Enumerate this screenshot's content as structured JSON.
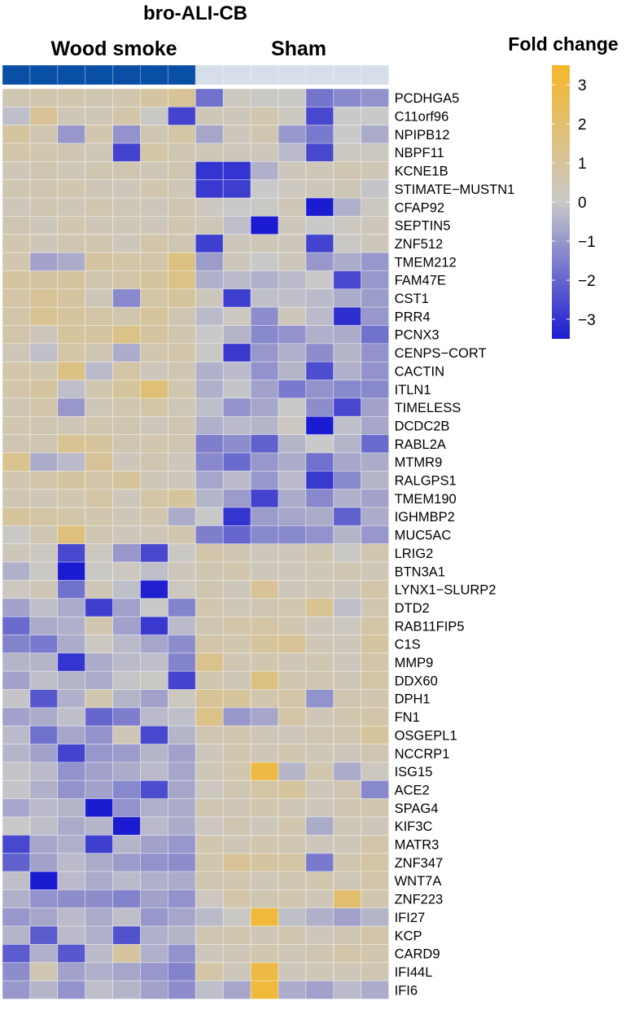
{
  "chart_data": {
    "type": "heatmap",
    "title": "bro-ALI-CB",
    "groups": [
      {
        "name": "Wood smoke",
        "n": 7,
        "color": "#0a4fa6"
      },
      {
        "name": "Sham",
        "n": 7,
        "color": "#d6dfe9"
      }
    ],
    "legend": {
      "title": "Fold change",
      "min": -3.5,
      "max": 3.5,
      "ticks": [
        3,
        2,
        1,
        0,
        -1,
        -2,
        -3
      ],
      "tick_labels": [
        "3",
        "2",
        "1",
        "0",
        "−1",
        "−2",
        "−3"
      ],
      "colors": {
        "low": "#1b1bd1",
        "mid": "#c9c9c9",
        "high": "#f5b72a"
      }
    },
    "rows": [
      "PCDHGA5",
      "C11orf96",
      "NPIPB12",
      "NBPF11",
      "KCNE1B",
      "STIMATE−MUSTN1",
      "CFAP92",
      "SEPTIN5",
      "ZNF512",
      "TMEM212",
      "FAM47E",
      "CST1",
      "PRR4",
      "PCNX3",
      "CENPS−CORT",
      "CACTIN",
      "ITLN1",
      "TIMELESS",
      "DCDC2B",
      "RABL2A",
      "MTMR9",
      "RALGPS1",
      "TMEM190",
      "IGHMBP2",
      "MUC5AC",
      "LRIG2",
      "BTN3A1",
      "LYNX1−SLURP2",
      "DTD2",
      "RAB11FIP5",
      "C1S",
      "MMP9",
      "DDX60",
      "DPH1",
      "FN1",
      "OSGEPL1",
      "NCCRP1",
      "ISG15",
      "ACE2",
      "SPAG4",
      "KIF3C",
      "MATR3",
      "ZNF347",
      "WNT7A",
      "ZNF223",
      "IFI27",
      "KCP",
      "CARD9",
      "IFI44L",
      "IFI6"
    ],
    "values": [
      [
        0.5,
        0.6,
        0.6,
        0.5,
        0.6,
        0.9,
        1.1,
        -1.8,
        0.2,
        0.1,
        0.1,
        -1.7,
        -1.3,
        -1.1
      ],
      [
        -0.2,
        1.1,
        0.4,
        0.4,
        0.7,
        0.1,
        -2.7,
        0.4,
        0.3,
        0.6,
        0.2,
        -2.6,
        0,
        0
      ],
      [
        0.9,
        0.5,
        -1.0,
        0.6,
        -1.1,
        0.5,
        0.8,
        -0.7,
        0.3,
        0.5,
        -1.0,
        -1.6,
        0,
        -0.6
      ],
      [
        0.7,
        0.6,
        0.5,
        0.4,
        -2.7,
        0.8,
        0.5,
        0.4,
        0.3,
        0.3,
        -0.3,
        -2.6,
        0.2,
        0.2
      ],
      [
        0.4,
        0.5,
        0.4,
        0.5,
        0.5,
        0.4,
        0.5,
        -3.0,
        -3.0,
        -0.5,
        0.3,
        0.4,
        0.5,
        0.4
      ],
      [
        0.5,
        0.5,
        0.6,
        0.4,
        0.3,
        0.6,
        0.4,
        -2.9,
        -2.8,
        0,
        0.2,
        0.3,
        0.4,
        -0.1
      ],
      [
        0.3,
        0.5,
        0.4,
        0.6,
        0.4,
        0.3,
        0.5,
        0.2,
        0,
        0.1,
        0.4,
        -3.5,
        -0.5,
        0.2
      ],
      [
        0.5,
        0.3,
        0.6,
        0.4,
        0.4,
        0.3,
        0.6,
        0.4,
        -0.2,
        -3.5,
        0.3,
        0,
        0.2,
        0.3
      ],
      [
        0.6,
        0.4,
        0.5,
        0.6,
        0.3,
        0.7,
        0.5,
        -2.8,
        0.3,
        0.4,
        0.3,
        -2.7,
        0.1,
        0.3
      ],
      [
        0.6,
        -0.8,
        -0.6,
        0.9,
        0.8,
        0.7,
        1.6,
        -0.9,
        0.3,
        0,
        0.3,
        -1.0,
        -0.6,
        -1.0
      ],
      [
        0.9,
        0.9,
        1.0,
        0.6,
        0.7,
        1.0,
        1.4,
        -0.5,
        -0.3,
        -0.5,
        -0.3,
        0,
        -2.6,
        -1.0
      ],
      [
        0.8,
        1.1,
        0.9,
        0.4,
        -1.3,
        0.8,
        1.0,
        0.3,
        -2.8,
        -0.2,
        -0.2,
        -0.3,
        -0.6,
        -0.9
      ],
      [
        0.7,
        1.2,
        1.0,
        0.8,
        0.6,
        1.0,
        0.5,
        -0.3,
        0.2,
        -1.2,
        0.3,
        -0.3,
        -3.1,
        -1.0
      ],
      [
        0.7,
        0.3,
        1.0,
        0.9,
        1.4,
        0.9,
        0.6,
        0,
        -0.4,
        -1.3,
        -1.1,
        -0.5,
        -0.6,
        -1.8
      ],
      [
        0.4,
        -0.2,
        0.8,
        0.5,
        -0.6,
        0.6,
        0.7,
        0.1,
        -2.9,
        -1.0,
        -0.5,
        -1.2,
        -0.4,
        -1.1
      ],
      [
        0.7,
        0.6,
        1.5,
        -0.3,
        0.8,
        0.3,
        0.5,
        -0.5,
        -0.3,
        -1.1,
        -0.4,
        -2.5,
        -0.5,
        -1.1
      ],
      [
        0.7,
        0.9,
        -0.2,
        0.6,
        1.0,
        1.8,
        0.6,
        -0.5,
        -0.1,
        -0.8,
        -1.6,
        -1.1,
        -1.3,
        -1.3
      ],
      [
        0.5,
        0.7,
        -1.0,
        0.4,
        0.6,
        0.8,
        0.4,
        -0.2,
        -1.1,
        -0.7,
        0,
        -1.2,
        -2.6,
        -0.8
      ],
      [
        0.6,
        0.5,
        0.4,
        0.6,
        0.5,
        0.3,
        0.5,
        -0.5,
        -0.3,
        -0.4,
        0.2,
        -3.6,
        -0.2,
        -0.7
      ],
      [
        0.5,
        0.5,
        1.2,
        1.0,
        0.5,
        0.6,
        0.5,
        -1.5,
        -1.2,
        -2.1,
        -0.4,
        0,
        -0.4,
        -1.9
      ],
      [
        1.3,
        -0.6,
        -0.3,
        1.1,
        0.3,
        0.5,
        0.3,
        -1.3,
        -1.9,
        -1.0,
        -0.6,
        -1.8,
        -0.7,
        -0.6
      ],
      [
        0.6,
        0.7,
        0.9,
        0.7,
        1.0,
        0.4,
        0.3,
        -0.7,
        -0.3,
        -1.0,
        -0.3,
        -2.9,
        -1.3,
        -0.4
      ],
      [
        0.5,
        0.4,
        0.6,
        0.8,
        0.3,
        0.8,
        1.0,
        -0.4,
        -0.9,
        -2.7,
        -0.6,
        -1.3,
        -0.5,
        -0.8
      ],
      [
        1.0,
        0.8,
        0.7,
        0.6,
        0.4,
        0.6,
        -0.6,
        0,
        -3.0,
        -0.9,
        -0.7,
        -0.6,
        -2.1,
        -0.6
      ],
      [
        0.1,
        0.5,
        1.7,
        0.5,
        0.3,
        0.4,
        0.6,
        -1.5,
        -2.0,
        -1.3,
        -1.3,
        -1.1,
        -0.4,
        -1.0
      ],
      [
        0.3,
        0.2,
        -2.6,
        0.2,
        -1.0,
        -2.6,
        0.1,
        0.7,
        0.5,
        0.3,
        0.3,
        0.5,
        0.1,
        0.6
      ],
      [
        -0.5,
        0.1,
        -3.6,
        0.1,
        0.2,
        -0.2,
        0.3,
        0.5,
        0.6,
        0.3,
        0.3,
        0.4,
        0.5,
        0.4
      ],
      [
        0.2,
        0.4,
        -1.8,
        0.4,
        -0.2,
        -3.4,
        0.2,
        0.5,
        0.3,
        1.1,
        0.3,
        0.4,
        0.3,
        0.7
      ],
      [
        -0.8,
        -0.2,
        -0.6,
        -2.8,
        -0.8,
        0,
        -1.4,
        0.6,
        0.4,
        0.5,
        0.6,
        1.2,
        -0.2,
        0.6
      ],
      [
        -1.9,
        -0.6,
        -0.5,
        0.6,
        -0.8,
        -2.9,
        -0.3,
        0.5,
        0.7,
        0.8,
        0.6,
        0.3,
        0.2,
        0.8
      ],
      [
        -1.4,
        -1.6,
        -0.6,
        0.2,
        -0.3,
        -0.7,
        -1.2,
        0.7,
        0.6,
        1.0,
        1.1,
        0.4,
        0.3,
        0.9
      ],
      [
        -0.4,
        -0.4,
        -3.0,
        -0.6,
        -0.3,
        -0.2,
        -1.4,
        1.3,
        0.5,
        0.6,
        0.4,
        0.5,
        0.3,
        0.7
      ],
      [
        -0.8,
        -0.2,
        -0.4,
        -0.6,
        -0.1,
        0.1,
        -2.7,
        0.6,
        0.4,
        1.6,
        0.6,
        0.5,
        0.4,
        0.8
      ],
      [
        -0.1,
        -2.3,
        -0.5,
        0.6,
        -0.4,
        -0.8,
        0.2,
        1.1,
        1.0,
        0.6,
        0.7,
        -1.1,
        0.5,
        0.6
      ],
      [
        -0.8,
        -0.6,
        -0.2,
        -2.0,
        -1.5,
        -0.3,
        -0.2,
        1.4,
        -1.0,
        -0.7,
        0.8,
        0.4,
        0.6,
        0.7
      ],
      [
        -0.3,
        -1.8,
        -0.7,
        -1.1,
        0.4,
        -2.6,
        -0.4,
        0.5,
        0.6,
        0.4,
        0.3,
        0.5,
        0.6,
        1.0
      ],
      [
        -0.4,
        -0.8,
        -2.7,
        -1.0,
        -0.9,
        -0.4,
        -0.8,
        0.3,
        0.6,
        0.4,
        0.6,
        0.4,
        0.3,
        0.5
      ],
      [
        -0.1,
        -0.3,
        -1.1,
        -0.8,
        -0.6,
        -0.3,
        -0.7,
        0.4,
        0.6,
        2.9,
        -0.4,
        0.6,
        -0.6,
        0.2
      ],
      [
        -0.1,
        -0.5,
        -1.1,
        -0.8,
        -1.3,
        -2.5,
        -0.7,
        0.2,
        0.5,
        0.8,
        1.0,
        0.3,
        0.5,
        -1.3
      ],
      [
        -0.7,
        -0.3,
        -0.4,
        -3.5,
        -1.1,
        -0.5,
        -0.6,
        0.5,
        0.4,
        0.6,
        0.4,
        0.3,
        0.5,
        0.6
      ],
      [
        0,
        -0.2,
        -0.6,
        -0.4,
        -3.5,
        -0.3,
        -0.6,
        0.2,
        0.5,
        0.3,
        0.6,
        -0.6,
        0.4,
        0.3
      ],
      [
        -2.6,
        -0.7,
        -0.5,
        -2.8,
        -0.4,
        -0.8,
        -1.0,
        0.6,
        0.4,
        0.6,
        0.5,
        0.3,
        0.4,
        0.7
      ],
      [
        -2.1,
        -0.8,
        -0.3,
        -0.6,
        -0.9,
        -1.1,
        -1.2,
        0.6,
        1.1,
        0.9,
        0.8,
        -1.6,
        0.6,
        0.8
      ],
      [
        -0.2,
        -3.5,
        -0.3,
        -0.6,
        -0.3,
        -0.5,
        -0.6,
        0.5,
        0.6,
        0.4,
        0.5,
        0.6,
        0.4,
        0.7
      ],
      [
        -0.5,
        -1.1,
        -1.2,
        -1.2,
        -1.4,
        -0.8,
        -1.1,
        0.2,
        0.7,
        0.5,
        0.6,
        0.4,
        2.0,
        0.6
      ],
      [
        -1.0,
        -0.7,
        -0.3,
        -0.6,
        -0.2,
        -1.0,
        -0.7,
        -0.3,
        0.1,
        3.1,
        -0.2,
        -0.5,
        -0.8,
        -0.4
      ],
      [
        -0.4,
        -2.2,
        -0.3,
        -0.5,
        -2.4,
        -0.5,
        -0.4,
        0.5,
        0.6,
        0.4,
        0.6,
        0.3,
        0.5,
        0.7
      ],
      [
        -2.2,
        -0.5,
        -2.3,
        -0.3,
        0.9,
        -0.5,
        -1.1,
        0.3,
        0.4,
        0.6,
        0.4,
        0.5,
        0.7,
        0.6
      ],
      [
        -1.2,
        0.5,
        -0.8,
        -0.5,
        -0.7,
        -1.0,
        -1.4,
        0.8,
        0.3,
        2.9,
        0.3,
        0.4,
        0.4,
        0.5
      ],
      [
        -1.0,
        -0.4,
        -1.1,
        -0.2,
        -0.4,
        -0.8,
        -1.2,
        -0.2,
        -0.7,
        3.1,
        -0.6,
        -0.8,
        -0.3,
        -0.6
      ]
    ]
  }
}
